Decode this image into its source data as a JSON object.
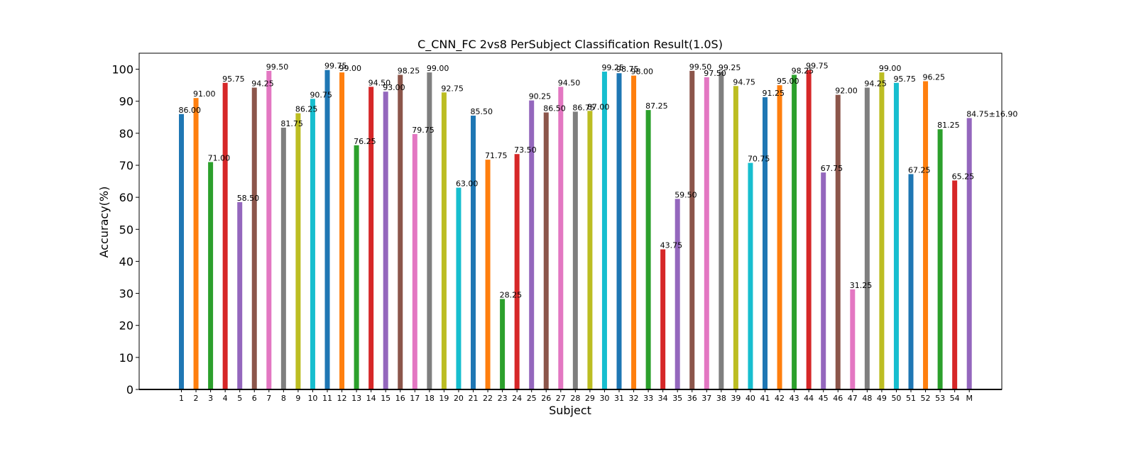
{
  "chart_data": {
    "type": "bar",
    "title": "C_CNN_FC 2vs8 PerSubject Classification Result(1.0S)",
    "xlabel": "Subject",
    "ylabel": "Accuracy(%)",
    "ylim": [
      0,
      105
    ],
    "yticks": [
      0,
      10,
      20,
      30,
      40,
      50,
      60,
      70,
      80,
      90,
      100
    ],
    "grid": false,
    "categories": [
      "1",
      "2",
      "3",
      "4",
      "5",
      "6",
      "7",
      "8",
      "9",
      "10",
      "11",
      "12",
      "13",
      "14",
      "15",
      "16",
      "17",
      "18",
      "19",
      "20",
      "21",
      "22",
      "23",
      "24",
      "25",
      "26",
      "27",
      "28",
      "29",
      "30",
      "31",
      "32",
      "33",
      "34",
      "35",
      "36",
      "37",
      "38",
      "39",
      "40",
      "41",
      "42",
      "43",
      "44",
      "45",
      "46",
      "47",
      "48",
      "49",
      "50",
      "51",
      "52",
      "53",
      "54",
      "M"
    ],
    "values": [
      86.0,
      91.0,
      71.0,
      95.75,
      58.5,
      94.25,
      99.5,
      81.75,
      86.25,
      90.75,
      99.75,
      99.0,
      76.25,
      94.5,
      93.0,
      98.25,
      79.75,
      99.0,
      92.75,
      63.0,
      85.5,
      71.75,
      28.25,
      73.5,
      90.25,
      86.5,
      94.5,
      86.75,
      87.0,
      99.25,
      98.75,
      98.0,
      87.25,
      43.75,
      59.5,
      99.5,
      97.5,
      99.25,
      94.75,
      70.75,
      91.25,
      95.0,
      98.25,
      99.75,
      67.75,
      92.0,
      31.25,
      94.25,
      99.0,
      95.75,
      67.25,
      96.25,
      81.25,
      65.25,
      84.75
    ],
    "data_labels": [
      "86.00",
      "91.00",
      "71.00",
      "95.75",
      "58.50",
      "94.25",
      "99.50",
      "81.75",
      "86.25",
      "90.75",
      "99.75",
      "99.00",
      "76.25",
      "94.50",
      "93.00",
      "98.25",
      "79.75",
      "99.00",
      "92.75",
      "63.00",
      "85.50",
      "71.75",
      "28.25",
      "73.50",
      "90.25",
      "86.50",
      "94.50",
      "86.75",
      "87.00",
      "99.25",
      "98.75",
      "98.00",
      "87.25",
      "43.75",
      "59.50",
      "99.50",
      "97.50",
      "99.25",
      "94.75",
      "70.75",
      "91.25",
      "95.00",
      "98.25",
      "99.75",
      "67.75",
      "92.00",
      "31.25",
      "94.25",
      "99.00",
      "95.75",
      "67.25",
      "96.25",
      "81.25",
      "65.25",
      "84.75±16.90"
    ],
    "colors": [
      "#1f77b4",
      "#ff7f0e",
      "#2ca02c",
      "#d62728",
      "#9467bd",
      "#8c564b",
      "#e377c2",
      "#7f7f7f",
      "#bcbd22",
      "#17becf"
    ],
    "mean_label_color": "#ff0000"
  }
}
